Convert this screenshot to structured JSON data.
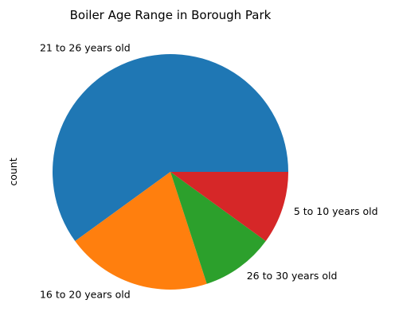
{
  "chart_data": {
    "type": "pie",
    "title": "Boiler Age Range in Borough Park",
    "ylabel": "count",
    "slices": [
      {
        "label": "21 to 26 years old",
        "value": 6,
        "color": "#1f77b4"
      },
      {
        "label": "16 to 20 years old",
        "value": 2,
        "color": "#ff7f0e"
      },
      {
        "label": "26 to 30 years old",
        "value": 1,
        "color": "#2ca02c"
      },
      {
        "label": "5 to 10 years old",
        "value": 1,
        "color": "#d62728"
      }
    ]
  }
}
